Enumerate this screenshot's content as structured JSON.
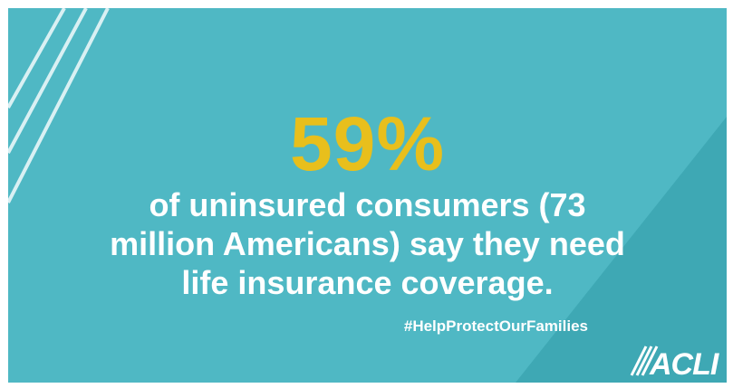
{
  "headline": {
    "stat": "59%",
    "description": "of uninsured consumers (73 million Americans) say they need life insurance coverage."
  },
  "hashtag": "#HelpProtectOurFamilies",
  "logo": {
    "text": "ACLI"
  },
  "colors": {
    "background": "#4fb8c4",
    "accent_panel": "#3ea8b4",
    "stat": "#e8bf1c",
    "text": "#ffffff"
  }
}
